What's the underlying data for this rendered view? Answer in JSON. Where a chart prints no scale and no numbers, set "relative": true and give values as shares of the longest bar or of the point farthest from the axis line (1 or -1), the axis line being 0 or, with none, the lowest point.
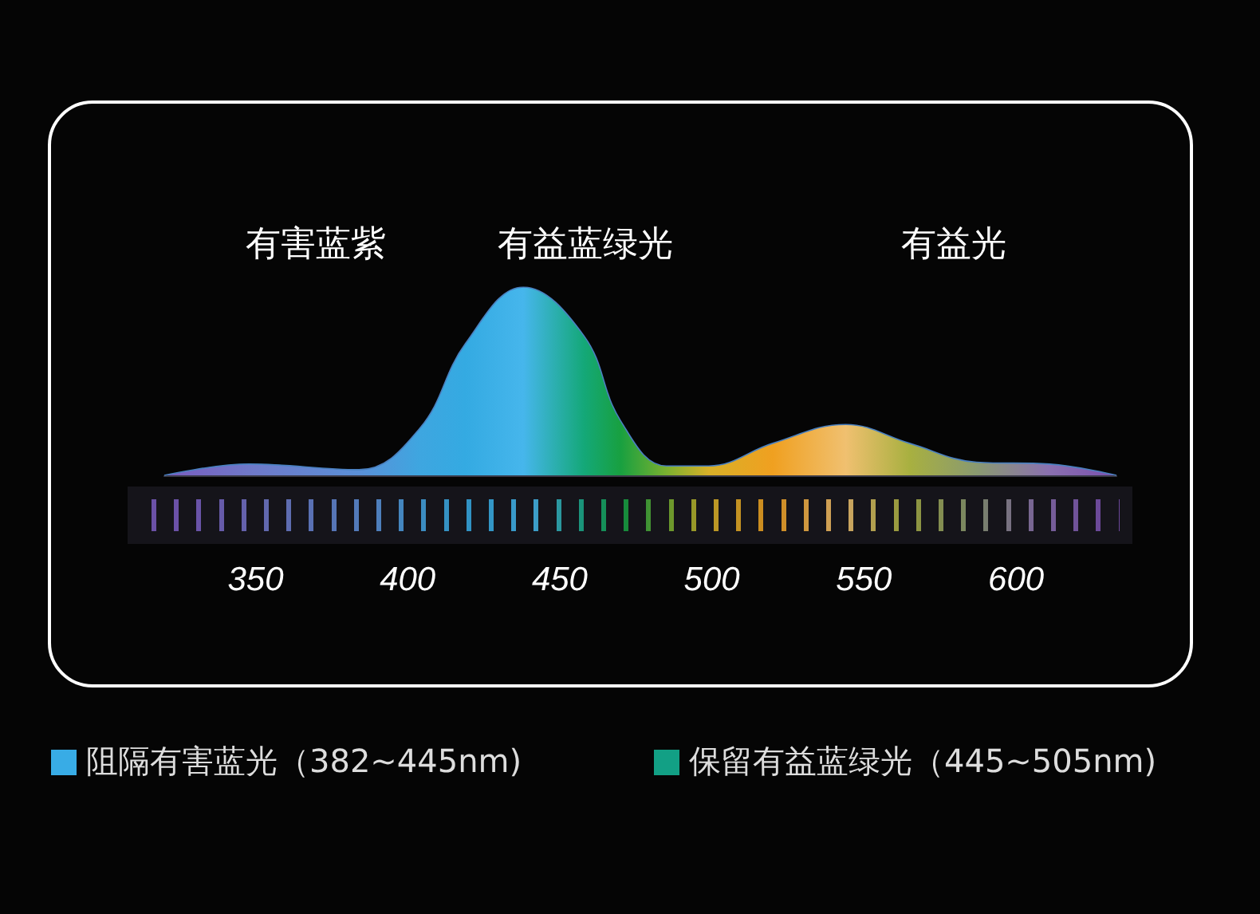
{
  "chart_data": {
    "type": "area",
    "relative": true,
    "x": [
      320,
      348,
      384,
      404,
      419,
      438,
      458,
      470,
      485,
      499,
      520,
      544,
      565,
      587,
      611,
      633
    ],
    "series": [
      {
        "values": [
          0,
          0.06,
          0.03,
          0.25,
          0.7,
          1.0,
          0.74,
          0.29,
          0.05,
          0.05,
          0.17,
          0.27,
          0.17,
          0.07,
          0.06,
          0
        ],
        "colors": [
          "#7a5cc0",
          "#6f78c8",
          "#5a90d8",
          "#3ea6e0",
          "#34aae2",
          "#46b6ec",
          "#14a878",
          "#18a040",
          "#7ab030",
          "#d8b028",
          "#f0a020",
          "#f0c070",
          "#a8b040",
          "#8a9a70",
          "#8a70b0",
          "#7a50b0"
        ]
      }
    ],
    "xlim": [
      320,
      633
    ],
    "xticks": [
      350,
      400,
      450,
      500,
      550,
      600
    ],
    "grid": false,
    "annotations": [
      "有害蓝紫",
      "有益蓝绿光",
      "有益光",
      "阻隔有害蓝光（382~445nm)",
      "保留有益蓝绿光（445~505nm)"
    ]
  }
}
